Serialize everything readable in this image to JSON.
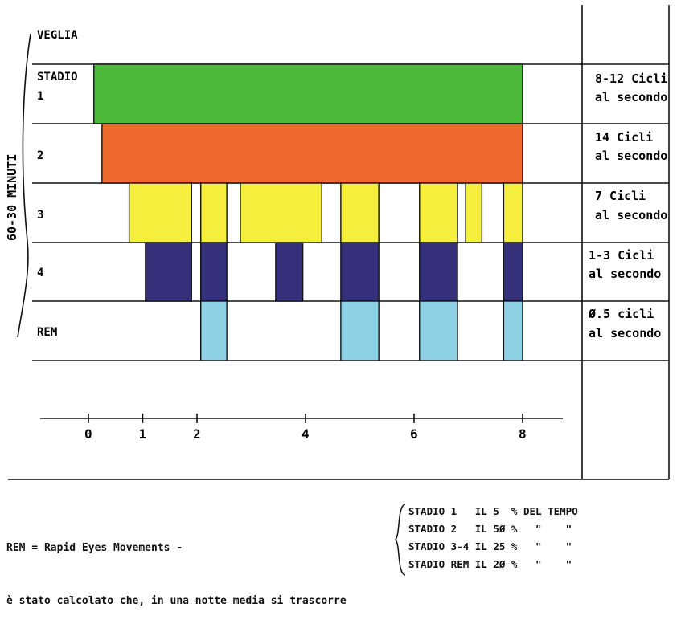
{
  "side_label": "60-30 MINUTI",
  "stages": [
    {
      "label": "VEGLIA",
      "desc1": "",
      "desc2": ""
    },
    {
      "label": "STADIO",
      "label2": "1",
      "desc1": "8-12 Cicli",
      "desc2": "al secondo"
    },
    {
      "label": "2",
      "desc1": "14 Cicli",
      "desc2": "al secondo"
    },
    {
      "label": "3",
      "desc1": "7 Cicli",
      "desc2": "al secondo"
    },
    {
      "label": "4",
      "desc1": "1-3 Cicli",
      "desc2": "al secondo"
    },
    {
      "label": "REM",
      "desc1": "Ø.5 cicli",
      "desc2": "al secondo"
    }
  ],
  "axis_ticks": [
    "0",
    "1",
    "2",
    "4",
    "6",
    "8"
  ],
  "colors": {
    "stage1": "#4cb83a",
    "stage2": "#ee6a2c",
    "stage3": "#f5ee3c",
    "stage4": "#34307a",
    "rem": "#8ed0e4"
  },
  "blocks": {
    "stage1": [
      [
        0.1,
        8.0
      ]
    ],
    "stage2": [
      [
        0.25,
        8.0
      ]
    ],
    "stage3": [
      [
        0.75,
        1.9
      ],
      [
        2.07,
        2.55
      ],
      [
        2.8,
        4.3
      ],
      [
        4.65,
        5.35
      ],
      [
        6.1,
        6.8
      ],
      [
        6.95,
        7.25
      ],
      [
        7.65,
        8.0
      ]
    ],
    "stage4": [
      [
        1.05,
        1.9
      ],
      [
        2.07,
        2.55
      ],
      [
        3.45,
        3.95
      ],
      [
        4.65,
        5.35
      ],
      [
        6.1,
        6.8
      ],
      [
        7.65,
        8.0
      ]
    ],
    "rem": [
      [
        2.07,
        2.55
      ],
      [
        4.65,
        5.35
      ],
      [
        6.1,
        6.8
      ],
      [
        7.65,
        8.0
      ]
    ]
  },
  "legend": {
    "line1": "REM = Rapid Eyes Movements -",
    "line2": "è stato calcolato che, in una notte media si trascorre"
  },
  "stats": [
    "STADIO 1   IL 5  % DEL TEMPO",
    "STADIO 2   IL 5Ø %   \"    \"",
    "STADIO 3-4 IL 25 %   \"    \"",
    "STADIO REM IL 2Ø %   \"    \""
  ]
}
